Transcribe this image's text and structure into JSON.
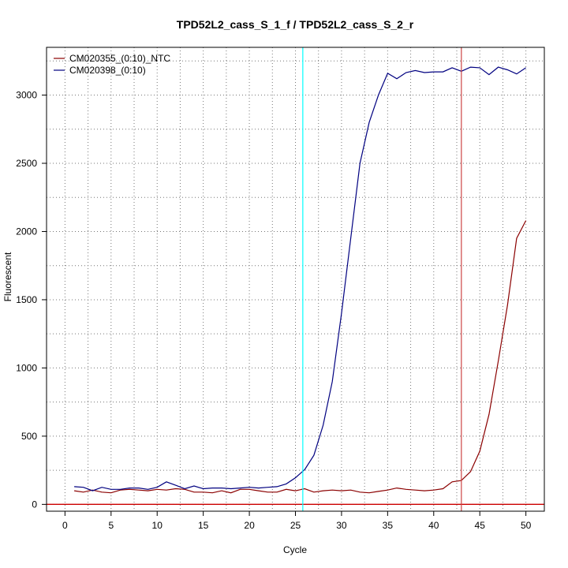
{
  "chart_data": {
    "type": "line",
    "title": "TPD52L2_cass_S_1_f / TPD52L2_cass_S_2_r",
    "xlabel": "Cycle",
    "ylabel": "Fluorescent",
    "xlim": [
      -2,
      52
    ],
    "ylim": [
      -50,
      3350
    ],
    "x_ticks": [
      "0",
      "5",
      "10",
      "15",
      "20",
      "25",
      "30",
      "35",
      "40",
      "45",
      "50"
    ],
    "y_ticks": [
      "0",
      "500",
      "1000",
      "1500",
      "2000",
      "2500",
      "3000"
    ],
    "grid": true,
    "legend_position": "top-left",
    "threshold_y": 0,
    "threshold_color": "#cc0000",
    "vlines": [
      {
        "x": 25.8,
        "color": "#00ffff"
      },
      {
        "x": 43,
        "color": "#cc4444"
      }
    ],
    "x": [
      1,
      2,
      3,
      4,
      5,
      6,
      7,
      8,
      9,
      10,
      11,
      12,
      13,
      14,
      15,
      16,
      17,
      18,
      19,
      20,
      21,
      22,
      23,
      24,
      25,
      26,
      27,
      28,
      29,
      30,
      31,
      32,
      33,
      34,
      35,
      36,
      37,
      38,
      39,
      40,
      41,
      42,
      43,
      44,
      45,
      46,
      47,
      48,
      49,
      50
    ],
    "series": [
      {
        "name": "CM020355_(0:10)_NTC",
        "color": "#8b0000",
        "values": [
          100,
          90,
          105,
          90,
          85,
          105,
          110,
          105,
          100,
          110,
          105,
          115,
          110,
          90,
          90,
          85,
          100,
          85,
          110,
          110,
          100,
          90,
          90,
          110,
          100,
          115,
          90,
          100,
          105,
          100,
          105,
          90,
          85,
          95,
          105,
          120,
          110,
          105,
          100,
          105,
          115,
          165,
          175,
          240,
          390,
          660,
          1050,
          1460,
          1950,
          2080
        ]
      },
      {
        "name": "CM020398_(0:10)",
        "color": "#000080",
        "values": [
          130,
          125,
          100,
          125,
          110,
          110,
          120,
          120,
          110,
          125,
          165,
          140,
          115,
          135,
          115,
          120,
          120,
          115,
          120,
          125,
          120,
          125,
          130,
          150,
          195,
          255,
          360,
          580,
          900,
          1400,
          1950,
          2500,
          2800,
          3000,
          3160,
          3120,
          3165,
          3180,
          3165,
          3170,
          3170,
          3200,
          3175,
          3205,
          3200,
          3150,
          3205,
          3185,
          3155,
          3200
        ]
      }
    ]
  }
}
